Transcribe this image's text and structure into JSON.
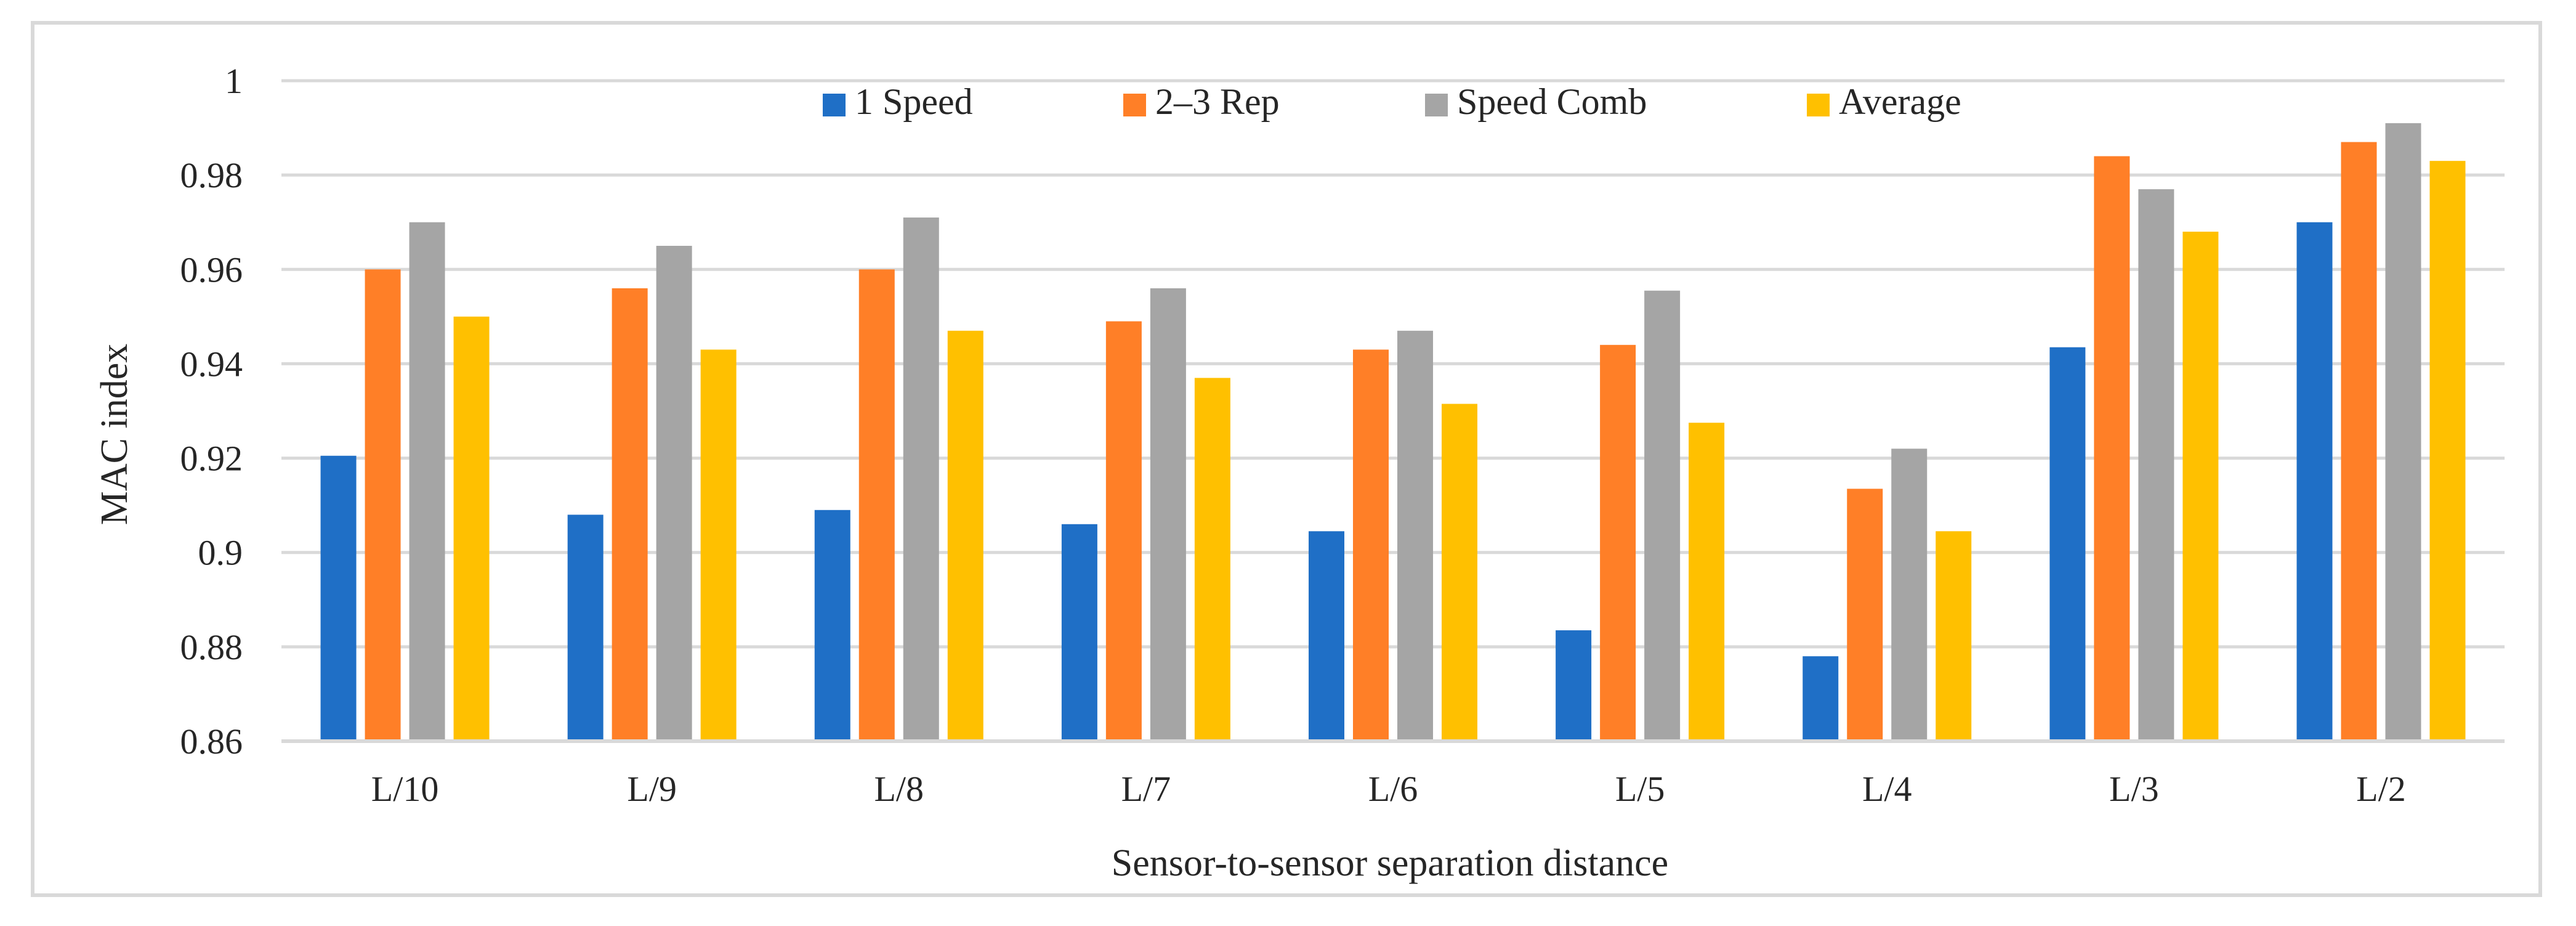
{
  "chart_data": {
    "type": "bar",
    "title": "",
    "xlabel": "Sensor-to-sensor separation distance",
    "ylabel": "MAC index",
    "ylim": [
      0.86,
      1.0
    ],
    "yticks": [
      0.86,
      0.88,
      0.9,
      0.92,
      0.94,
      0.96,
      0.98,
      1
    ],
    "ytick_labels": [
      "0.86",
      "0.88",
      "0.9",
      "0.92",
      "0.94",
      "0.96",
      "0.98",
      "1"
    ],
    "grid": true,
    "legend_position": "top-center",
    "categories": [
      "L/10",
      "L/9",
      "L/8",
      "L/7",
      "L/6",
      "L/5",
      "L/4",
      "L/3",
      "L/2"
    ],
    "series": [
      {
        "name": "1 Speed",
        "color": "#1f6fc6",
        "values": [
          0.9205,
          0.908,
          0.909,
          0.906,
          0.9045,
          0.8835,
          0.878,
          0.9435,
          0.97
        ]
      },
      {
        "name": "2–3 Rep",
        "color": "#ff7f27",
        "values": [
          0.96,
          0.956,
          0.96,
          0.949,
          0.943,
          0.944,
          0.9135,
          0.984,
          0.987
        ]
      },
      {
        "name": "Speed Comb",
        "color": "#a5a5a5",
        "values": [
          0.97,
          0.965,
          0.971,
          0.956,
          0.947,
          0.9555,
          0.922,
          0.977,
          0.991
        ]
      },
      {
        "name": "Average",
        "color": "#ffc000",
        "values": [
          0.95,
          0.943,
          0.947,
          0.937,
          0.9315,
          0.9275,
          0.9045,
          0.968,
          0.983
        ]
      }
    ]
  }
}
